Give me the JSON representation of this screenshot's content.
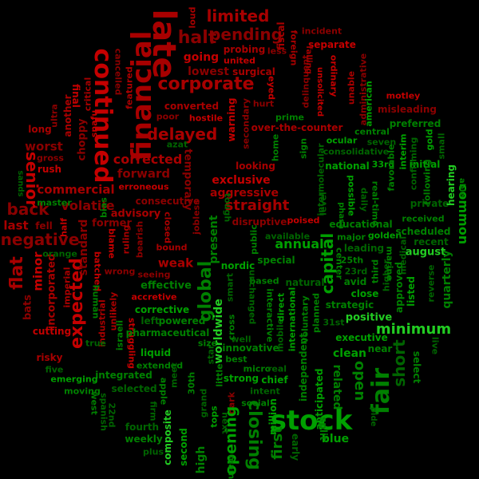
{
  "colors": {
    "background": "#000000",
    "red": [
      "#8b0000",
      "#a80000",
      "#c40000",
      "#e00000"
    ],
    "green": [
      "#006400",
      "#008000",
      "#00a000",
      "#22cc22"
    ]
  },
  "words": [
    {
      "text": "late",
      "tone": "red"
    },
    {
      "text": "financial",
      "tone": "red"
    },
    {
      "text": "continued",
      "tone": "red"
    },
    {
      "text": "corporate",
      "tone": "red"
    },
    {
      "text": "halt",
      "tone": "red"
    },
    {
      "text": "limited",
      "tone": "red"
    },
    {
      "text": "pending",
      "tone": "red"
    },
    {
      "text": "delayed",
      "tone": "red"
    },
    {
      "text": "expected",
      "tone": "red"
    },
    {
      "text": "flat",
      "tone": "red"
    },
    {
      "text": "negative",
      "tone": "red"
    },
    {
      "text": "back",
      "tone": "red"
    },
    {
      "text": "senior",
      "tone": "red"
    },
    {
      "text": "corrected",
      "tone": "red"
    },
    {
      "text": "forward",
      "tone": "red"
    },
    {
      "text": "commercial",
      "tone": "red"
    },
    {
      "text": "volatile",
      "tone": "red"
    },
    {
      "text": "straight",
      "tone": "red"
    },
    {
      "text": "exclusive",
      "tone": "red"
    },
    {
      "text": "aggressive",
      "tone": "red"
    },
    {
      "text": "worst",
      "tone": "red"
    },
    {
      "text": "last",
      "tone": "red"
    },
    {
      "text": "lowest",
      "tone": "red"
    },
    {
      "text": "going",
      "tone": "red"
    },
    {
      "text": "advisory",
      "tone": "red"
    },
    {
      "text": "former",
      "tone": "red"
    },
    {
      "text": "minor",
      "tone": "red"
    },
    {
      "text": "incorporated",
      "tone": "red"
    },
    {
      "text": "standard",
      "tone": "red"
    },
    {
      "text": "weak",
      "tone": "red"
    },
    {
      "text": "fiscal",
      "tone": "red"
    },
    {
      "text": "separate",
      "tone": "red"
    },
    {
      "text": "incident",
      "tone": "red"
    },
    {
      "text": "probing",
      "tone": "red"
    },
    {
      "text": "surgical",
      "tone": "red"
    },
    {
      "text": "misleading",
      "tone": "red"
    },
    {
      "text": "motley",
      "tone": "red"
    },
    {
      "text": "over-the-counter",
      "tone": "red"
    },
    {
      "text": "warning",
      "tone": "red"
    },
    {
      "text": "secondary",
      "tone": "red"
    },
    {
      "text": "looking",
      "tone": "red"
    },
    {
      "text": "disruptive",
      "tone": "red"
    },
    {
      "text": "poised",
      "tone": "red"
    },
    {
      "text": "converted",
      "tone": "red"
    },
    {
      "text": "poor",
      "tone": "red"
    },
    {
      "text": "hostile",
      "tone": "red"
    },
    {
      "text": "consecutive",
      "tone": "red"
    },
    {
      "text": "erroneous",
      "tone": "red"
    },
    {
      "text": "bound",
      "tone": "red"
    },
    {
      "text": "seeing",
      "tone": "red"
    },
    {
      "text": "accretive",
      "tone": "red"
    },
    {
      "text": "wrong",
      "tone": "red"
    },
    {
      "text": "imperial",
      "tone": "red"
    },
    {
      "text": "batched",
      "tone": "red"
    },
    {
      "text": "unlikely",
      "tone": "red"
    },
    {
      "text": "bats",
      "tone": "red"
    },
    {
      "text": "cutting",
      "tone": "red"
    },
    {
      "text": "risky",
      "tone": "red"
    },
    {
      "text": "gross",
      "tone": "red"
    },
    {
      "text": "rush",
      "tone": "red"
    },
    {
      "text": "long",
      "tone": "red"
    },
    {
      "text": "half",
      "tone": "red"
    },
    {
      "text": "fell",
      "tone": "red"
    },
    {
      "text": "another",
      "tone": "red"
    },
    {
      "text": "choppy",
      "tone": "red"
    },
    {
      "text": "final",
      "tone": "red"
    },
    {
      "text": "cancelled",
      "tone": "red"
    },
    {
      "text": "featured",
      "tone": "red"
    },
    {
      "text": "united",
      "tone": "red"
    },
    {
      "text": "less",
      "tone": "red"
    },
    {
      "text": "loud",
      "tone": "red"
    },
    {
      "text": "foreign",
      "tone": "red"
    },
    {
      "text": "delinquent",
      "tone": "red"
    },
    {
      "text": "ordinary",
      "tone": "red"
    },
    {
      "text": "unable",
      "tone": "red"
    },
    {
      "text": "administrative",
      "tone": "red"
    },
    {
      "text": "unsolicited",
      "tone": "red"
    },
    {
      "text": "falling",
      "tone": "red"
    },
    {
      "text": "hurt",
      "tone": "red"
    },
    {
      "text": "eyed",
      "tone": "red"
    },
    {
      "text": "temporary",
      "tone": "red"
    },
    {
      "text": "snafu",
      "tone": "red"
    },
    {
      "text": "critical",
      "tone": "red"
    },
    {
      "text": "ultra",
      "tone": "red"
    },
    {
      "text": "closed",
      "tone": "red"
    },
    {
      "text": "jobless",
      "tone": "red"
    },
    {
      "text": "blame",
      "tone": "red"
    },
    {
      "text": "ruling",
      "tone": "red"
    },
    {
      "text": "bearish",
      "tone": "red"
    },
    {
      "text": "struggling",
      "tone": "red"
    },
    {
      "text": "industrial",
      "tone": "red"
    },
    {
      "text": "dark",
      "tone": "red"
    },
    {
      "text": "stock",
      "tone": "green"
    },
    {
      "text": "fair",
      "tone": "green"
    },
    {
      "text": "minimum",
      "tone": "green"
    },
    {
      "text": "capital",
      "tone": "green"
    },
    {
      "text": "global",
      "tone": "green"
    },
    {
      "text": "closing",
      "tone": "green"
    },
    {
      "text": "opening",
      "tone": "green"
    },
    {
      "text": "open",
      "tone": "green"
    },
    {
      "text": "short",
      "tone": "green"
    },
    {
      "text": "first",
      "tone": "green"
    },
    {
      "text": "annual",
      "tone": "green"
    },
    {
      "text": "worldwide",
      "tone": "green"
    },
    {
      "text": "present",
      "tone": "green"
    },
    {
      "text": "common",
      "tone": "green"
    },
    {
      "text": "quarterly",
      "tone": "green"
    },
    {
      "text": "clean",
      "tone": "green"
    },
    {
      "text": "positive",
      "tone": "green"
    },
    {
      "text": "related",
      "tone": "green"
    },
    {
      "text": "anticipated",
      "tone": "green"
    },
    {
      "text": "independent",
      "tone": "green"
    },
    {
      "text": "effective",
      "tone": "green"
    },
    {
      "text": "corrective",
      "tone": "green"
    },
    {
      "text": "powered",
      "tone": "green"
    },
    {
      "text": "left",
      "tone": "green"
    },
    {
      "text": "pharmaceutical",
      "tone": "green"
    },
    {
      "text": "liquid",
      "tone": "green"
    },
    {
      "text": "integrated",
      "tone": "green"
    },
    {
      "text": "selected",
      "tone": "green"
    },
    {
      "text": "moving",
      "tone": "green"
    },
    {
      "text": "emerging",
      "tone": "green"
    },
    {
      "text": "five",
      "tone": "green"
    },
    {
      "text": "extended",
      "tone": "green"
    },
    {
      "text": "meet",
      "tone": "green"
    },
    {
      "text": "innovative",
      "tone": "green"
    },
    {
      "text": "well",
      "tone": "green"
    },
    {
      "text": "best",
      "tone": "green"
    },
    {
      "text": "strong",
      "tone": "green"
    },
    {
      "text": "micro",
      "tone": "green"
    },
    {
      "text": "real",
      "tone": "green"
    },
    {
      "text": "chief",
      "tone": "green"
    },
    {
      "text": "intent",
      "tone": "green"
    },
    {
      "text": "social",
      "tone": "green"
    },
    {
      "text": "million",
      "tone": "green"
    },
    {
      "text": "composite",
      "tone": "green"
    },
    {
      "text": "second",
      "tone": "green"
    },
    {
      "text": "high",
      "tone": "green"
    },
    {
      "text": "fourth",
      "tone": "green"
    },
    {
      "text": "weekly",
      "tone": "green"
    },
    {
      "text": "firm",
      "tone": "green"
    },
    {
      "text": "tops",
      "tone": "green"
    },
    {
      "text": "main",
      "tone": "green"
    },
    {
      "text": "next",
      "tone": "green"
    },
    {
      "text": "blue",
      "tone": "green"
    },
    {
      "text": "split",
      "tone": "green"
    },
    {
      "text": "early",
      "tone": "green"
    },
    {
      "text": "select",
      "tone": "green"
    },
    {
      "text": "live",
      "tone": "green"
    },
    {
      "text": "near",
      "tone": "green"
    },
    {
      "text": "executive",
      "tone": "green"
    },
    {
      "text": "strategic",
      "tone": "green"
    },
    {
      "text": "close",
      "tone": "green"
    },
    {
      "text": "avid",
      "tone": "green"
    },
    {
      "text": "leading",
      "tone": "green"
    },
    {
      "text": "major",
      "tone": "green"
    },
    {
      "text": "golden",
      "tone": "green"
    },
    {
      "text": "scheduled",
      "tone": "green"
    },
    {
      "text": "recent",
      "tone": "green"
    },
    {
      "text": "august",
      "tone": "green"
    },
    {
      "text": "received",
      "tone": "green"
    },
    {
      "text": "private",
      "tone": "green"
    },
    {
      "text": "initial",
      "tone": "green"
    },
    {
      "text": "hearing",
      "tone": "green"
    },
    {
      "text": "preferred",
      "tone": "green"
    },
    {
      "text": "central",
      "tone": "green"
    },
    {
      "text": "seven",
      "tone": "green"
    },
    {
      "text": "national",
      "tone": "green"
    },
    {
      "text": "educational",
      "tone": "green"
    },
    {
      "text": "consolidative",
      "tone": "green"
    },
    {
      "text": "ocular",
      "tone": "green"
    },
    {
      "text": "prime",
      "tone": "green"
    },
    {
      "text": "american",
      "tone": "green"
    },
    {
      "text": "special",
      "tone": "green"
    },
    {
      "text": "available",
      "tone": "green"
    },
    {
      "text": "public",
      "tone": "green"
    },
    {
      "text": "nordic",
      "tone": "green"
    },
    {
      "text": "based",
      "tone": "green"
    },
    {
      "text": "natural",
      "tone": "green"
    },
    {
      "text": "interactive",
      "tone": "green"
    },
    {
      "text": "international",
      "tone": "green"
    },
    {
      "text": "voluntary",
      "tone": "green"
    },
    {
      "text": "mobile",
      "tone": "green"
    },
    {
      "text": "direct",
      "tone": "green"
    },
    {
      "text": "planned",
      "tone": "green"
    },
    {
      "text": "31st",
      "tone": "green"
    },
    {
      "text": "25th",
      "tone": "green"
    },
    {
      "text": "23rd",
      "tone": "green"
    },
    {
      "text": "33rd",
      "tone": "green"
    },
    {
      "text": "30th",
      "tone": "green"
    },
    {
      "text": "22nd",
      "tone": "green"
    },
    {
      "text": "listed",
      "tone": "green"
    },
    {
      "text": "approved",
      "tone": "green"
    },
    {
      "text": "reverse",
      "tone": "green"
    },
    {
      "text": "interim",
      "tone": "green"
    },
    {
      "text": "favorable",
      "tone": "green"
    },
    {
      "text": "confirming",
      "tone": "green"
    },
    {
      "text": "gold",
      "tone": "green"
    },
    {
      "text": "real-time",
      "tone": "green"
    },
    {
      "text": "daily",
      "tone": "green"
    },
    {
      "text": "possible",
      "tone": "green"
    },
    {
      "text": "apple",
      "tone": "green"
    },
    {
      "text": "spanish",
      "tone": "green"
    },
    {
      "text": "west",
      "tone": "green"
    },
    {
      "text": "plus",
      "tone": "green"
    },
    {
      "text": "master",
      "tone": "green"
    },
    {
      "text": "orange",
      "tone": "green"
    },
    {
      "text": "human",
      "tone": "green"
    },
    {
      "text": "true",
      "tone": "green"
    },
    {
      "text": "israeli",
      "tone": "green"
    },
    {
      "text": "star",
      "tone": "green"
    },
    {
      "text": "cross",
      "tone": "green"
    },
    {
      "text": "smart",
      "tone": "green"
    },
    {
      "text": "little",
      "tone": "green"
    },
    {
      "text": "grand",
      "tone": "green"
    },
    {
      "text": "size",
      "tone": "green"
    },
    {
      "text": "tough",
      "tone": "green"
    },
    {
      "text": "bias",
      "tone": "green"
    },
    {
      "text": "azat",
      "tone": "green"
    },
    {
      "text": "home",
      "tone": "green"
    },
    {
      "text": "level",
      "tone": "green"
    },
    {
      "text": "sign",
      "tone": "green"
    },
    {
      "text": "intermolecular",
      "tone": "green"
    },
    {
      "text": "center",
      "tone": "green"
    },
    {
      "text": "unchanged",
      "tone": "green"
    },
    {
      "text": "third",
      "tone": "green"
    },
    {
      "text": "higher",
      "tone": "green"
    },
    {
      "text": "marine",
      "tone": "green"
    },
    {
      "text": "medical",
      "tone": "green"
    },
    {
      "text": "following",
      "tone": "green"
    },
    {
      "text": "small",
      "tone": "green"
    },
    {
      "text": "able",
      "tone": "green"
    },
    {
      "text": "sands",
      "tone": "green"
    },
    {
      "text": "phasa",
      "tone": "green"
    },
    {
      "text": "pide",
      "tone": "green"
    }
  ]
}
